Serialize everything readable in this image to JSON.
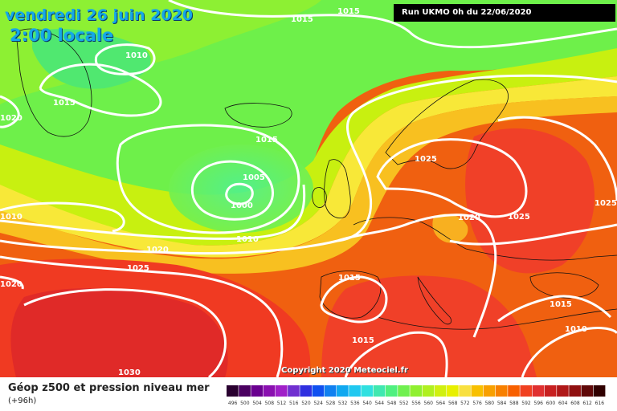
{
  "header": {
    "date_line": "vendredi 26 juin 2020",
    "time_line": "2:00 locale",
    "run_label": "Run UKMO 0h du 22/06/2020",
    "copyright": "Copyright 2020 Meteociel.fr"
  },
  "legend": {
    "title": "Géop z500 et pression niveau mer",
    "subtitle": "(+96h)",
    "scale_values": [
      "496",
      "500",
      "504",
      "508",
      "512",
      "516",
      "520",
      "524",
      "528",
      "532",
      "536",
      "540",
      "544",
      "548",
      "552",
      "556",
      "560",
      "564",
      "568",
      "572",
      "576",
      "580",
      "584",
      "588",
      "592",
      "596",
      "600",
      "604",
      "608",
      "612",
      "616"
    ],
    "scale_colors": [
      "#2a0030",
      "#4a0060",
      "#6a0090",
      "#8a10b0",
      "#a020c8",
      "#7030d0",
      "#3030e0",
      "#1050f0",
      "#1080f0",
      "#10a8f0",
      "#20c8f0",
      "#30e0e0",
      "#40e8b0",
      "#50f080",
      "#70f050",
      "#90f030",
      "#b0f020",
      "#d0f010",
      "#e8f000",
      "#f8e040",
      "#f8c000",
      "#f8a000",
      "#f88000",
      "#f86000",
      "#f04020",
      "#e03030",
      "#c82020",
      "#b01818",
      "#901010",
      "#600808",
      "#300000"
    ],
    "colors": {
      "green_low": "#70f050",
      "orange": "#f88000",
      "red": "#f04020"
    }
  },
  "isobars": [
    {
      "value": "1015",
      "id": "iso-1015-north"
    },
    {
      "value": "1015",
      "id": "iso-1015-ne"
    },
    {
      "value": "1010",
      "id": "iso-1010-greenland"
    },
    {
      "value": "1015",
      "id": "iso-1015-greenland"
    },
    {
      "value": "1020",
      "id": "iso-1020-west-edge"
    },
    {
      "value": "1015",
      "id": "iso-1015-atlantic"
    },
    {
      "value": "1005",
      "id": "iso-1005-low"
    },
    {
      "value": "1000",
      "id": "iso-1000-low"
    },
    {
      "value": "1010",
      "id": "iso-1010-west"
    },
    {
      "value": "1010",
      "id": "iso-1010-atlantic"
    },
    {
      "value": "1020",
      "id": "iso-1020-atlantic"
    },
    {
      "value": "1025",
      "id": "iso-1025-atlantic"
    },
    {
      "value": "1020",
      "id": "iso-1020-sw-edge"
    },
    {
      "value": "1025",
      "id": "iso-1025-scandinavia"
    },
    {
      "value": "1020",
      "id": "iso-1020-central"
    },
    {
      "value": "1025",
      "id": "iso-1025-east"
    },
    {
      "value": "1025",
      "id": "iso-1025-far-east"
    },
    {
      "value": "1015",
      "id": "iso-1015-iberia"
    },
    {
      "value": "1015",
      "id": "iso-1015-south"
    },
    {
      "value": "1015",
      "id": "iso-1015-balkans"
    },
    {
      "value": "1010",
      "id": "iso-1010-se"
    },
    {
      "value": "1030",
      "id": "iso-1030-azores"
    }
  ]
}
